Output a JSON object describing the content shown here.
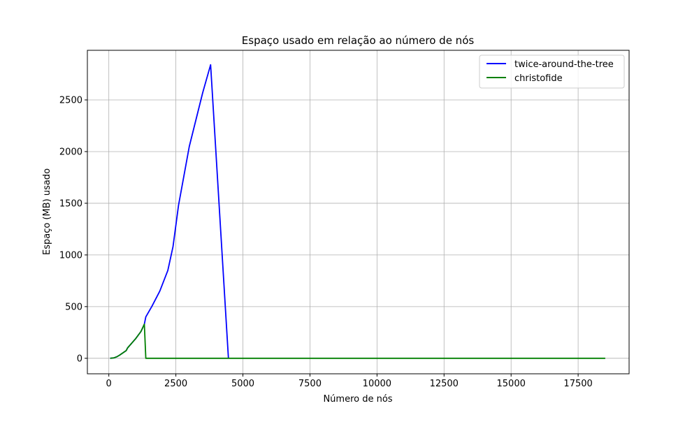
{
  "chart_data": {
    "type": "line",
    "title": "Espaço usado em relação ao número de nós",
    "xlabel": "Número de nós",
    "ylabel": "Espaço (MB) usado",
    "xlim": [
      -800,
      19400
    ],
    "ylim": [
      -150,
      2980
    ],
    "xticks": [
      0,
      2500,
      5000,
      7500,
      10000,
      12500,
      15000,
      17500
    ],
    "yticks": [
      0,
      500,
      1000,
      1500,
      2000,
      2500
    ],
    "grid": true,
    "legend_position": "top-right",
    "series": [
      {
        "name": "twice-around-the-tree",
        "color": "#0000ff",
        "points": [
          [
            52,
            0
          ],
          [
            200,
            5
          ],
          [
            300,
            15
          ],
          [
            400,
            30
          ],
          [
            650,
            75
          ],
          [
            700,
            100
          ],
          [
            1000,
            190
          ],
          [
            1200,
            260
          ],
          [
            1324,
            330
          ],
          [
            1380,
            400
          ],
          [
            1600,
            500
          ],
          [
            1900,
            650
          ],
          [
            2200,
            850
          ],
          [
            2392,
            1080
          ],
          [
            2600,
            1480
          ],
          [
            3000,
            2050
          ],
          [
            3500,
            2570
          ],
          [
            3795,
            2840
          ],
          [
            4461,
            0
          ]
        ]
      },
      {
        "name": "christofide",
        "color": "#008000",
        "points": [
          [
            52,
            0
          ],
          [
            200,
            5
          ],
          [
            300,
            15
          ],
          [
            400,
            30
          ],
          [
            650,
            75
          ],
          [
            700,
            100
          ],
          [
            1000,
            190
          ],
          [
            1200,
            260
          ],
          [
            1324,
            330
          ],
          [
            1380,
            0
          ],
          [
            4461,
            0
          ],
          [
            18512,
            0
          ]
        ]
      }
    ]
  }
}
